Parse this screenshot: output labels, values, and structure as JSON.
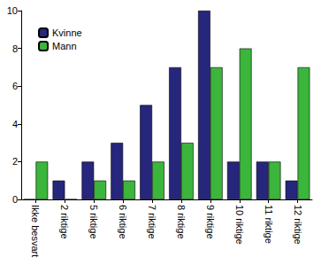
{
  "chart_data": {
    "type": "bar",
    "categories": [
      "Ikke besvart",
      "2 riktige",
      "5 riktige",
      "6 riktige",
      "7 riktige",
      "8 riktige",
      "9 riktige",
      "10 riktige",
      "11 riktige",
      "12 riktige"
    ],
    "series": [
      {
        "name": "Kvinne",
        "color": "#26267d",
        "values": [
          0,
          1,
          2,
          3,
          5,
          7,
          10,
          2,
          2,
          1
        ]
      },
      {
        "name": "Mann",
        "color": "#3bb53b",
        "values": [
          2,
          0,
          1,
          1,
          2,
          3,
          7,
          8,
          2,
          7
        ]
      }
    ],
    "ylim": [
      0,
      10
    ],
    "yticks": [
      0,
      2,
      4,
      6,
      8,
      10
    ],
    "grid": false,
    "legend": "upper left"
  }
}
